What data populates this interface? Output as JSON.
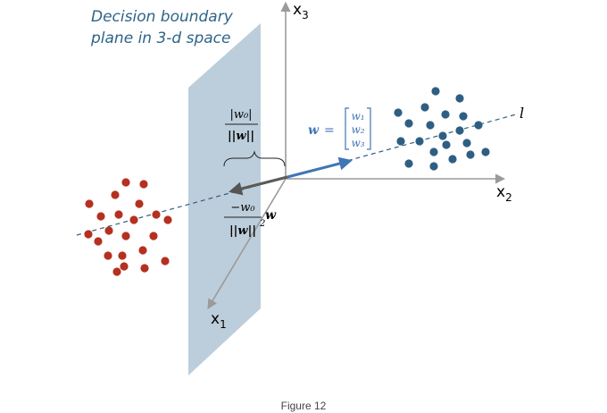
{
  "title": {
    "line1": "Decision boundary",
    "line2": "plane in 3-d space"
  },
  "axes": {
    "x1": {
      "base": "x",
      "sub": "1"
    },
    "x2": {
      "base": "x",
      "sub": "2"
    },
    "x3": {
      "base": "x",
      "sub": "3"
    }
  },
  "line_label": "l",
  "distance_label": {
    "numerator": "|w₀|",
    "denominator": "||w||"
  },
  "projection_label": {
    "numerator": "−w₀",
    "denominator": "||w||",
    "exponent": "2",
    "suffix": "w"
  },
  "weight_vector": {
    "name": "w",
    "equals": "=",
    "components": [
      "w₁",
      "w₂",
      "w₃"
    ]
  },
  "caption": "Figure 12",
  "colors": {
    "plane": "#9fb9cc",
    "red_points": "#b5301f",
    "blue_points": "#2e5f82",
    "weight_arrow": "#3f76b4",
    "projection_arrow": "#5a5a5a",
    "title": "#2f6489",
    "dashed_line": "#2e5f82"
  }
}
